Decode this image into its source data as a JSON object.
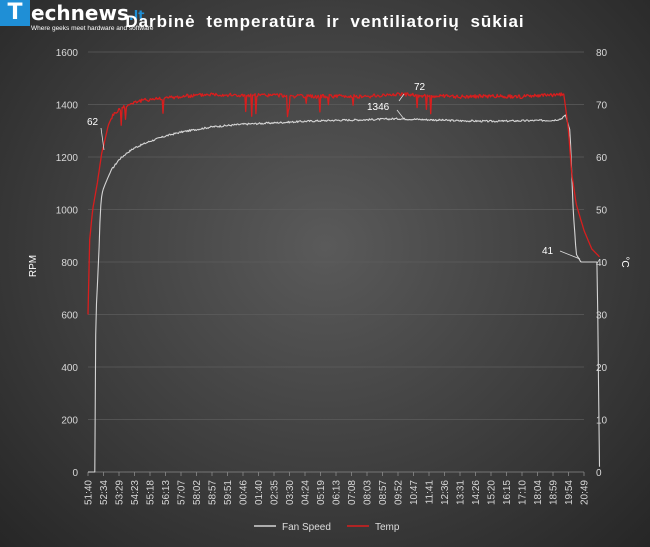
{
  "logo": {
    "box_letter": "T",
    "name": "echnews",
    "suffix": ".lt",
    "tagline": "Where geeks meet hardware and software"
  },
  "chart_data": {
    "type": "line",
    "title": "Darbinė temperatūra ir ventiliatorių sūkiai",
    "ylabel": "RPM",
    "y2label": "°C",
    "ylim": [
      0,
      1600
    ],
    "y2lim": [
      0,
      80
    ],
    "yticks": [
      "0",
      "200",
      "400",
      "600",
      "800",
      "1000",
      "1200",
      "1400",
      "1600"
    ],
    "y2ticks": [
      "0",
      "10",
      "20",
      "30",
      "40",
      "50",
      "60",
      "70",
      "80"
    ],
    "grid": true,
    "legend_position": "bottom",
    "categories": [
      "51:40",
      "52:34",
      "53:29",
      "54:23",
      "55:18",
      "56:13",
      "57:07",
      "58:02",
      "58:57",
      "59:51",
      "00:46",
      "01:40",
      "02:35",
      "03:30",
      "04:24",
      "05:19",
      "06:13",
      "07:08",
      "08:03",
      "08:57",
      "09:52",
      "10:47",
      "11:41",
      "12:36",
      "13:31",
      "14:26",
      "15:20",
      "16:15",
      "17:10",
      "18:04",
      "18:59",
      "19:54",
      "20:49"
    ],
    "series": [
      {
        "name": "Fan Speed",
        "axis": "left",
        "color": "#d4d4d4",
        "x": [
          0,
          0.3,
          0.45,
          0.5,
          0.7,
          0.8,
          0.9,
          1.0,
          1.2,
          1.5,
          2.0,
          2.5,
          3.0,
          4.0,
          5.0,
          6.0,
          7.0,
          8.0,
          9.0,
          10.0,
          12.0,
          14.0,
          16.0,
          18.0,
          20.0,
          22.0,
          24.0,
          26.0,
          28.0,
          30.0,
          30.5,
          30.8,
          31.1,
          31.3,
          31.5,
          31.8,
          32.2,
          32.6,
          32.85,
          33.0
        ],
        "values": [
          0,
          0,
          0,
          580,
          830,
          1000,
          1060,
          1080,
          1110,
          1150,
          1190,
          1215,
          1235,
          1260,
          1280,
          1295,
          1305,
          1315,
          1320,
          1325,
          1330,
          1336,
          1340,
          1342,
          1346,
          1342,
          1338,
          1336,
          1338,
          1340,
          1345,
          1360,
          1300,
          1000,
          830,
          800,
          800,
          800,
          800,
          20
        ]
      },
      {
        "name": "Temp",
        "axis": "right",
        "color": "#d81e1e",
        "x": [
          0,
          0.1,
          0.3,
          0.6,
          0.9,
          1.0,
          1.3,
          1.6,
          2.0,
          3.0,
          4.0,
          6.0,
          8.0,
          10.0,
          12.0,
          14.0,
          16.0,
          18.0,
          20.0,
          22.0,
          24.0,
          26.0,
          28.0,
          30.0,
          30.7,
          31.0,
          31.2,
          31.5,
          32.0,
          32.5,
          33.0
        ],
        "values": [
          30,
          44,
          50,
          55,
          61,
          62,
          66,
          68,
          69,
          70.5,
          71,
          71.5,
          72,
          71.7,
          71.8,
          71.5,
          71.6,
          71.5,
          72,
          71.6,
          71.5,
          71.6,
          71.5,
          71.8,
          72,
          65,
          57,
          51,
          46,
          42.5,
          41
        ]
      }
    ],
    "annotations": [
      "62",
      "72",
      "1346",
      "41"
    ]
  }
}
